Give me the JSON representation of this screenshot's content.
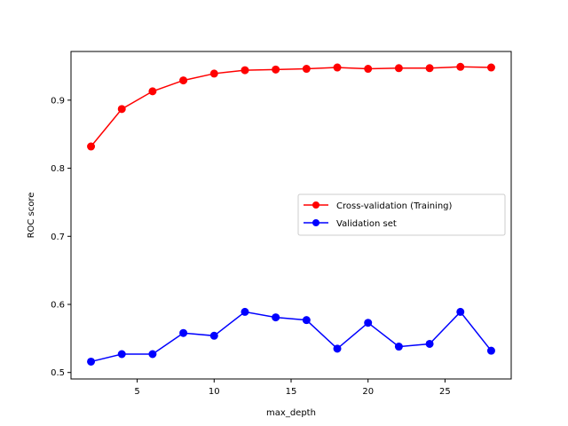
{
  "chart_data": {
    "type": "line",
    "title": "",
    "xlabel": "max_depth",
    "ylabel": "ROC score",
    "xlim": [
      0.7,
      29.3
    ],
    "ylim": [
      0.4905,
      0.9715
    ],
    "xticks": [
      5,
      10,
      15,
      20,
      25
    ],
    "yticks": [
      0.5,
      0.6,
      0.7,
      0.8,
      0.9
    ],
    "grid": false,
    "legend_position": "center-right",
    "x": [
      2,
      4,
      6,
      8,
      10,
      12,
      14,
      16,
      18,
      20,
      22,
      24,
      26,
      28
    ],
    "series": [
      {
        "name": "Cross-validation (Training)",
        "color": "#ff0000",
        "marker": "circle",
        "values": [
          0.832,
          0.887,
          0.913,
          0.929,
          0.939,
          0.944,
          0.945,
          0.946,
          0.948,
          0.946,
          0.947,
          0.947,
          0.949,
          0.948
        ]
      },
      {
        "name": "Validation set",
        "color": "#0000ff",
        "marker": "circle",
        "values": [
          0.516,
          0.527,
          0.527,
          0.558,
          0.554,
          0.589,
          0.581,
          0.577,
          0.535,
          0.573,
          0.538,
          0.542,
          0.589,
          0.532
        ]
      }
    ]
  }
}
